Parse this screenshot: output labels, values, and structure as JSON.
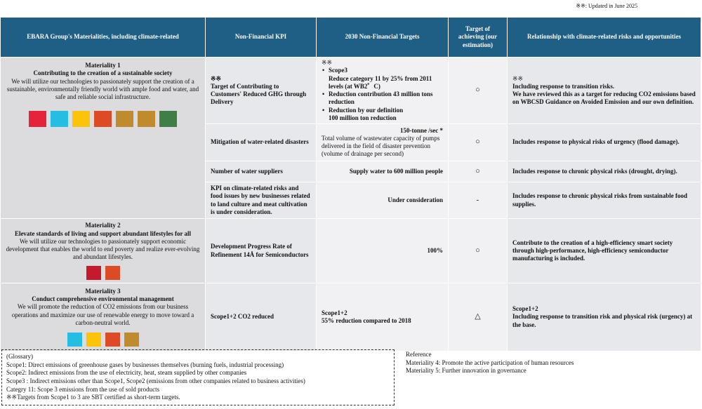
{
  "note": "※※: Updated in June 2025",
  "table": {
    "headers": [
      "EBARA Group's Materialities, including climate-related",
      "Non-Financial KPI",
      "2030 Non-Financial Targets",
      "Target of achieving (our estimation)",
      "Relationship with climate-related risks and opportunities"
    ],
    "materialities": [
      {
        "label": "Materiality 1",
        "title": "Contributing to the creation of a sustainable society",
        "description": "We will utilize our technologies to passionately support the creation of a sustainable, environmentally friendly world with ample food and water, and safe and reliable social infrastructure."
      },
      {
        "label": "Materiality 2",
        "title": "Elevate standards of living and support abundant lifestyles for all",
        "description": "We will utilize our technologies to passionately support economic development that enables the world to end poverty and realize ever-evolving and abundant lifestyles."
      },
      {
        "label": "Materiality 3",
        "title": "Conduct comprehensive environmental management",
        "description": "We will promote the reduction of CO2 emissions from our business operations and maximize our use of renewable energy to move toward a carbon-neutral world."
      }
    ],
    "rows": [
      {
        "kpi": [
          "※※",
          "Target of Contributing to Customers' Reduced GHG through Delivery"
        ],
        "target": [
          "※※",
          "Scope3",
          "Reduce category 11 by 25% from 2011 levels (at WB2゜C)",
          "Reduction contribution 43 million tons reduction",
          "Reduction by our definition",
          "100 million ton reduction"
        ],
        "achieving": "○",
        "relationship": [
          "※※",
          "Including response to transition risks.",
          "We have reviewed this as a target for reducing CO2 emissions based on WBCSD Guidance on Avoided Emission and our own definition."
        ]
      },
      {
        "kpi": [
          "Mitigation of water-related disasters"
        ],
        "target": [
          "150-tonne /sec *",
          "Total volume of wastewater capacity of pumps delivered in the field of disaster prevention (volume of drainage per second)"
        ],
        "achieving": "○",
        "relationship": [
          "Includes response to physical risks of urgency (flood damage)."
        ]
      },
      {
        "kpi": [
          "Number of water suppliers"
        ],
        "target": [
          "Supply water to 600 million people"
        ],
        "achieving": "○",
        "relationship": [
          "Includes response to chronic physical risks (drought, drying)."
        ]
      },
      {
        "kpi": [
          "KPI on climate-related risks and food issues by new businesses related to land culture and meat cultivation is under consideration."
        ],
        "target": [
          "Under consideration"
        ],
        "achieving": "-",
        "relationship": [
          "Includes response to chronic physical risks from sustainable food supplies."
        ]
      },
      {
        "kpi": [
          "Development Progress Rate of Refinement 14Å for Semiconductors"
        ],
        "target": [
          "100%"
        ],
        "achieving": "○",
        "relationship": [
          "Contribute to the creation of a high-efficiency smart society through high-performance, high-efficiency semiconductor manufacturing is included."
        ]
      },
      {
        "kpi": [
          "Scope1+2 CO2 reduced"
        ],
        "target": [
          "Scope1+2",
          "55% reduction compared to 2018"
        ],
        "achieving": "△",
        "relationship": [
          "Scope1+2",
          "Including response to transition risk and physical risk (urgency) at the base."
        ]
      }
    ]
  },
  "glossary": [
    "(Glossary)",
    "Scope1: Direct emissions of greenhouse gases by businesses themselves (burning fuels, industrial processing)",
    "Scope2: Indirect emissions from the use of electricity, heat, steam supplied by other companies",
    "Scope3 : Indirect emissions other than Scope1, Scope2 (emissions from other companies related to business activities)",
    "Categry 11: Scope 3 emissions from the use of sold products",
    "※※Targets from Scope1 to 3 are SBT certified as short-term targets."
  ],
  "reference": [
    "Reference",
    "Materiality 4: Promote the active participation of human resources",
    "Materiality 5: Further innovation in governance"
  ]
}
